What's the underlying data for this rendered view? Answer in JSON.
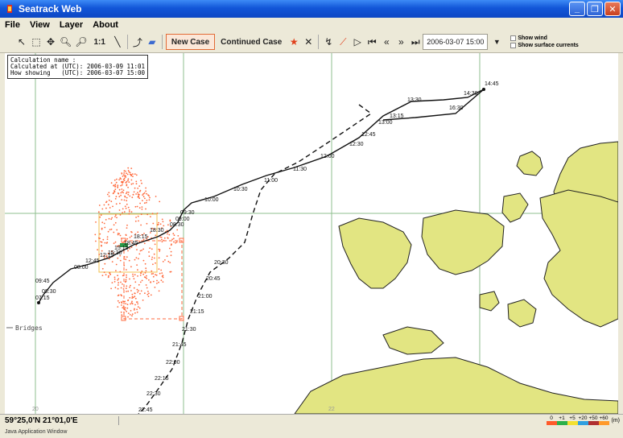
{
  "window": {
    "title": "Seatrack Web"
  },
  "menu": [
    "File",
    "View",
    "Layer",
    "About"
  ],
  "toolbar": {
    "zoom_label": "1:1",
    "new_case": "New Case",
    "continued_case": "Continued Case",
    "datetime": "2006-03-07 15:00",
    "show_wind": "Show wind",
    "show_currents": "Show surface currents"
  },
  "info": {
    "calc_name": "Calculation name :",
    "calc_at": "Calculated at (UTC): 2006-03-09 11:01",
    "showing": "How showing   (UTC): 2006-03-07 15:00"
  },
  "map": {
    "layer_label": "Bridges",
    "grid_label_left": "20",
    "grid_label_mid": "22",
    "track_labels": [
      "14:45",
      "14:30",
      "13:30",
      "13:15",
      "16:30",
      "13:00",
      "12:45",
      "12:30",
      "12:00",
      "11:30",
      "11:00",
      "10:30",
      "10:00",
      "09:30",
      "09:00",
      "08:30",
      "18:30",
      "18:15",
      "18:45",
      "15:15",
      "15:30",
      "12:15",
      "12:45",
      "00:00",
      "09:45",
      "08:30",
      "07:15",
      "20:30",
      "20:45",
      "21:00",
      "21:15",
      "21:30",
      "21:45",
      "22:00",
      "22:15",
      "22:30",
      "22:45"
    ]
  },
  "status": {
    "coordinate": "59°25,0'N 21°01,0'E",
    "depth_labels": [
      "0",
      "+1",
      "+5",
      "+20",
      "+50",
      "+60"
    ],
    "depth_unit": "(m)"
  },
  "footer": "Java Application Window",
  "colors": {
    "land": "#e2e582",
    "titlebar": "#1256d8",
    "drift": "#ff6a3d"
  }
}
